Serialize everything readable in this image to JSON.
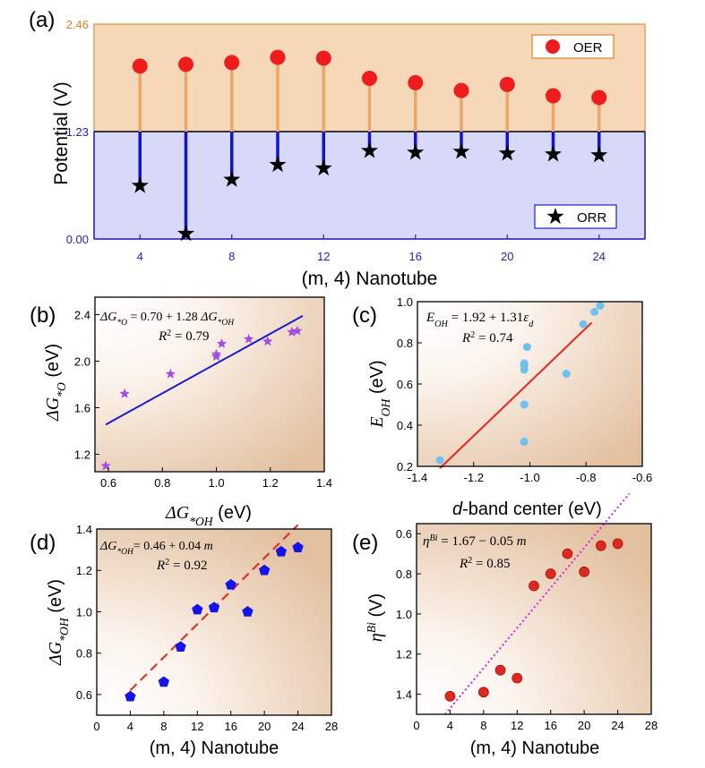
{
  "chart_data": [
    {
      "panel": "(a)",
      "type": "stem",
      "xlabel": "(m, 4) Nanotube",
      "ylabel": "Potential (V)",
      "xlim": [
        2,
        26
      ],
      "ylim": [
        0,
        2.46
      ],
      "x_ticks": [
        "4",
        "8",
        "12",
        "16",
        "20",
        "24"
      ],
      "y_tick_labels": [
        "0.00",
        "1.23",
        "2.46"
      ],
      "reference_level": 1.23,
      "regions": {
        "top_color": "#f6d8b8",
        "bottom_color": "#d8d8f8"
      },
      "series": [
        {
          "name": "OER",
          "marker": "circle",
          "color": "#ee1c1c",
          "stem_color": "#eba669",
          "x": [
            4,
            6,
            8,
            10,
            12,
            14,
            16,
            18,
            20,
            22,
            24
          ],
          "y": [
            1.98,
            2.0,
            2.02,
            2.08,
            2.07,
            1.84,
            1.79,
            1.7,
            1.77,
            1.64,
            1.62
          ]
        },
        {
          "name": "ORR",
          "marker": "star",
          "color": "#000000",
          "stem_color": "#1313cc",
          "x": [
            4,
            6,
            8,
            10,
            12,
            14,
            16,
            18,
            20,
            22,
            24
          ],
          "y": [
            0.61,
            0.06,
            0.68,
            0.85,
            0.81,
            1.01,
            0.99,
            1.0,
            0.98,
            0.97,
            0.96
          ]
        }
      ]
    },
    {
      "panel": "(b)",
      "type": "scatter",
      "xlabel_main": "ΔG",
      "xlabel_sub": "*OH",
      "xlabel_unit": " (eV)",
      "ylabel_main": "ΔG",
      "ylabel_sub": "*O",
      "ylabel_unit": " (eV)",
      "xlim": [
        0.55,
        1.4
      ],
      "ylim": [
        1.05,
        2.55
      ],
      "x_ticks": [
        "0.6",
        "0.8",
        "1.0",
        "1.2",
        "1.4"
      ],
      "y_ticks": [
        "1.2",
        "1.6",
        "2.0",
        "2.4"
      ],
      "marker_color": "#a24ee0",
      "fit_color": "#1a1acc",
      "fit": {
        "slope": 1.28,
        "intercept": 0.7,
        "x_range": [
          0.59,
          1.32
        ]
      },
      "equation_lines": [
        "ΔG*O = 0.70 + 1.28 ΔG*OH",
        "R² = 0.79"
      ],
      "points": {
        "x": [
          0.59,
          0.66,
          0.83,
          1.0,
          1.0,
          1.02,
          1.12,
          1.19,
          1.28,
          1.3
        ],
        "y": [
          1.1,
          1.72,
          1.89,
          2.04,
          2.06,
          2.15,
          2.19,
          2.17,
          2.25,
          2.26
        ]
      }
    },
    {
      "panel": "(c)",
      "type": "scatter",
      "xlabel_italic": "d",
      "xlabel_rest": "-band center (eV)",
      "ylabel_main": "E",
      "ylabel_sub": "OH",
      "ylabel_unit": " (eV)",
      "xlim": [
        -1.4,
        -0.6
      ],
      "ylim": [
        0.2,
        1.0
      ],
      "x_ticks": [
        "-1.4",
        "-1.2",
        "-1.0",
        "-0.8",
        "-0.6"
      ],
      "y_ticks": [
        "0.2",
        "0.4",
        "0.6",
        "0.8",
        "1.0"
      ],
      "marker_color": "#6ec1ee",
      "fit_color": "#e8241c",
      "fit": {
        "slope": 1.31,
        "intercept": 1.92,
        "x_range": [
          -1.32,
          -0.78
        ]
      },
      "equation_lines": [
        "EOH = 1.92 + 1.31εd",
        "R² = 0.74"
      ],
      "points": {
        "x": [
          -1.32,
          -1.02,
          -1.02,
          -1.02,
          -1.02,
          -1.02,
          -1.01,
          -0.87,
          -0.81,
          -0.77,
          -0.75
        ],
        "y": [
          0.23,
          0.32,
          0.5,
          0.67,
          0.7,
          0.69,
          0.78,
          0.65,
          0.89,
          0.95,
          0.98
        ]
      }
    },
    {
      "panel": "(d)",
      "type": "scatter",
      "xlabel": "(m, 4) Nanotube",
      "ylabel_main": "ΔG",
      "ylabel_sub": "*OH",
      "ylabel_unit": " (eV)",
      "xlim": [
        0,
        28
      ],
      "ylim": [
        0.5,
        1.4
      ],
      "x_ticks": [
        "0",
        "4",
        "8",
        "12",
        "16",
        "20",
        "24",
        "28"
      ],
      "y_ticks": [
        "0.6",
        "0.8",
        "1.0",
        "1.2",
        "1.4"
      ],
      "marker_color": "#1414e8",
      "fit_color": "#e0342a",
      "fit": {
        "slope": 0.04,
        "intercept": 0.46,
        "x_range": [
          4,
          24
        ]
      },
      "equation_lines": [
        "ΔG*OH= 0.46 + 0.04 m",
        "R² = 0.92"
      ],
      "points": {
        "x": [
          4,
          8,
          10,
          12,
          14,
          16,
          18,
          20,
          22,
          24
        ],
        "y": [
          0.59,
          0.66,
          0.83,
          1.01,
          1.02,
          1.13,
          1.0,
          1.2,
          1.29,
          1.31
        ]
      }
    },
    {
      "panel": "(e)",
      "type": "scatter",
      "xlabel": "(m, 4) Nanotube",
      "ylabel_main": "η",
      "ylabel_sup": "Bi",
      "ylabel_unit": " (V)",
      "xlim": [
        0,
        28
      ],
      "ylim": [
        1.5,
        0.55
      ],
      "y_reversed": true,
      "x_ticks": [
        "0",
        "4",
        "8",
        "12",
        "16",
        "20",
        "24",
        "28"
      ],
      "y_ticks": [
        "0.6",
        "0.8",
        "1.0",
        "1.2",
        "1.4"
      ],
      "marker_color": "#dd2a20",
      "fit_color": "#cc2ae0",
      "fit": {
        "slope": -0.05,
        "intercept": 1.67,
        "x_range": [
          3.4,
          25.4
        ]
      },
      "equation_lines": [
        "ηBi = 1.67 − 0.05 m",
        "R² = 0.85"
      ],
      "points": {
        "x": [
          4,
          8,
          10,
          12,
          14,
          16,
          18,
          20,
          22,
          24
        ],
        "y": [
          1.41,
          1.39,
          1.28,
          1.32,
          0.86,
          0.8,
          0.7,
          0.79,
          0.66,
          0.65
        ]
      }
    }
  ]
}
